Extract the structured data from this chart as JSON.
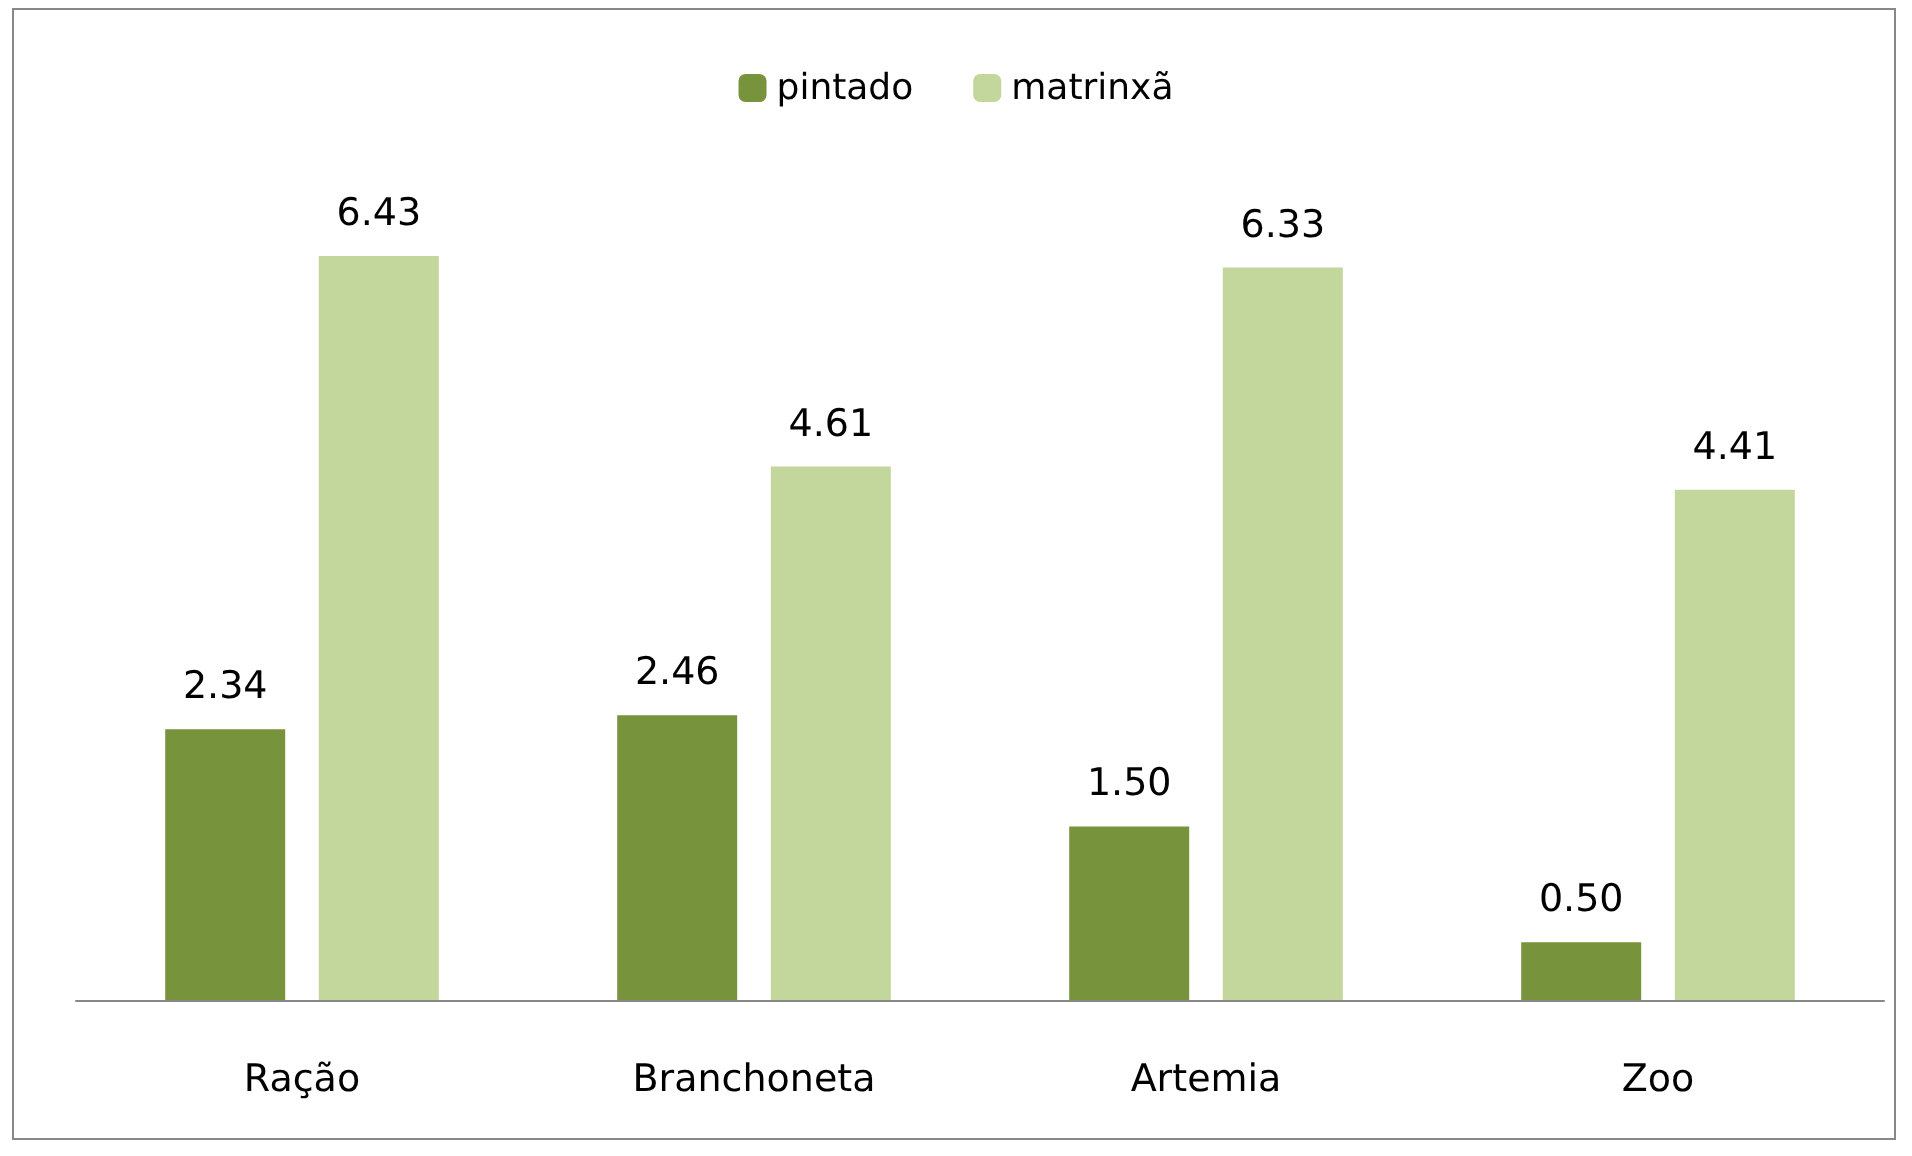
{
  "chart_data": {
    "type": "bar",
    "categories": [
      "Ração",
      "Branchoneta",
      "Artemia",
      "Zoo"
    ],
    "series": [
      {
        "name": "pintado",
        "color": "#77933c",
        "values": [
          2.34,
          2.46,
          1.5,
          0.5
        ],
        "value_labels": [
          "2.34",
          "2.46",
          "1.50",
          "0.50"
        ]
      },
      {
        "name": "matrinxã",
        "color": "#c3d69b",
        "values": [
          6.43,
          4.61,
          6.33,
          4.41
        ],
        "value_labels": [
          "6.43",
          "4.61",
          "6.33",
          "4.41"
        ]
      }
    ],
    "legend": "top"
  }
}
